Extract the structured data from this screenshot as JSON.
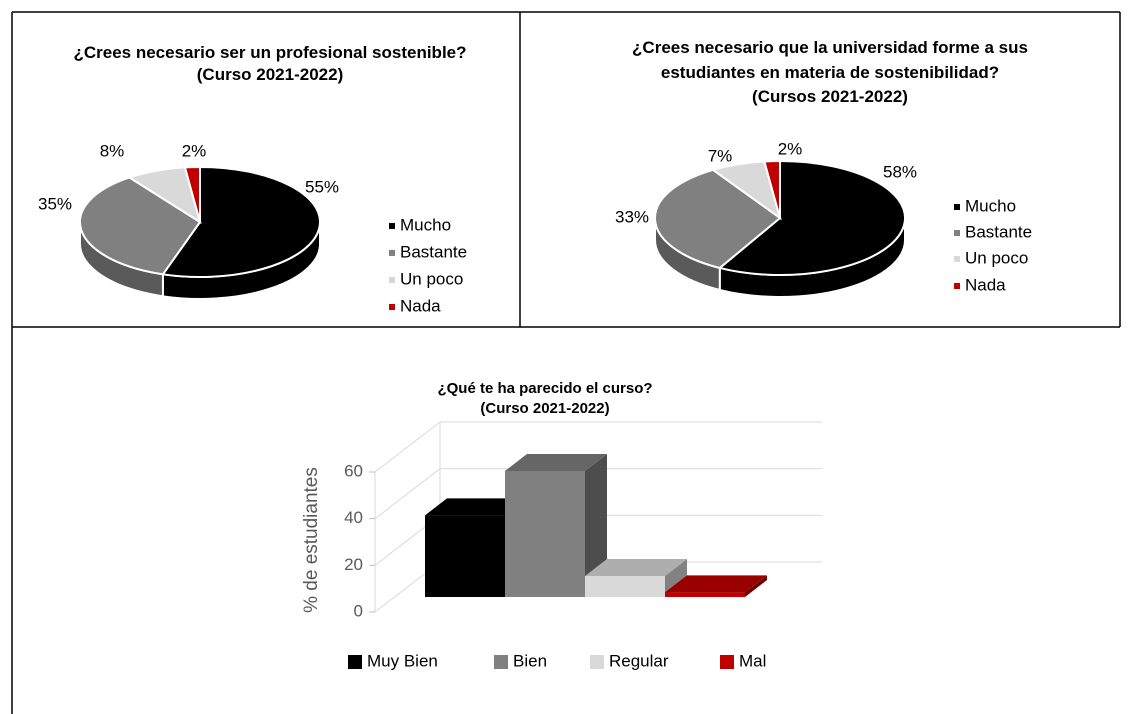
{
  "chart_data": [
    {
      "type": "pie",
      "title": "¿Crees necesario ser un profesional sostenible?",
      "subtitle": "(Curso 2021-2022)",
      "categories": [
        "Mucho",
        "Bastante",
        "Un poco",
        "Nada"
      ],
      "values": [
        55,
        35,
        8,
        2
      ],
      "value_labels": [
        "55%",
        "35%",
        "8%",
        "2%"
      ],
      "colors": [
        "#000000",
        "#808080",
        "#d9d9d9",
        "#c00000"
      ],
      "legend": "right"
    },
    {
      "type": "pie",
      "title": "¿Crees necesario que la universidad forme a sus estudiantes en materia de sostenibilidad?",
      "subtitle": "(Cursos 2021-2022)",
      "categories": [
        "Mucho",
        "Bastante",
        "Un poco",
        "Nada"
      ],
      "values": [
        58,
        33,
        7,
        2
      ],
      "value_labels": [
        "58%",
        "33%",
        "7%",
        "2%"
      ],
      "colors": [
        "#000000",
        "#808080",
        "#d9d9d9",
        "#c00000"
      ],
      "legend": "right"
    },
    {
      "type": "bar",
      "title": "¿Qué te ha parecido el curso?",
      "subtitle": "(Curso 2021-2022)",
      "categories": [
        "Muy Bien",
        "Bien",
        "Regular",
        "Mal"
      ],
      "values": [
        35,
        54,
        9,
        2
      ],
      "colors": [
        "#000000",
        "#808080",
        "#d9d9d9",
        "#c00000"
      ],
      "y_label": "% de estudiantes",
      "ylim": [
        0,
        60
      ],
      "yticks": [
        0,
        20,
        40,
        60
      ],
      "grid": true,
      "legend": "bottom"
    }
  ]
}
